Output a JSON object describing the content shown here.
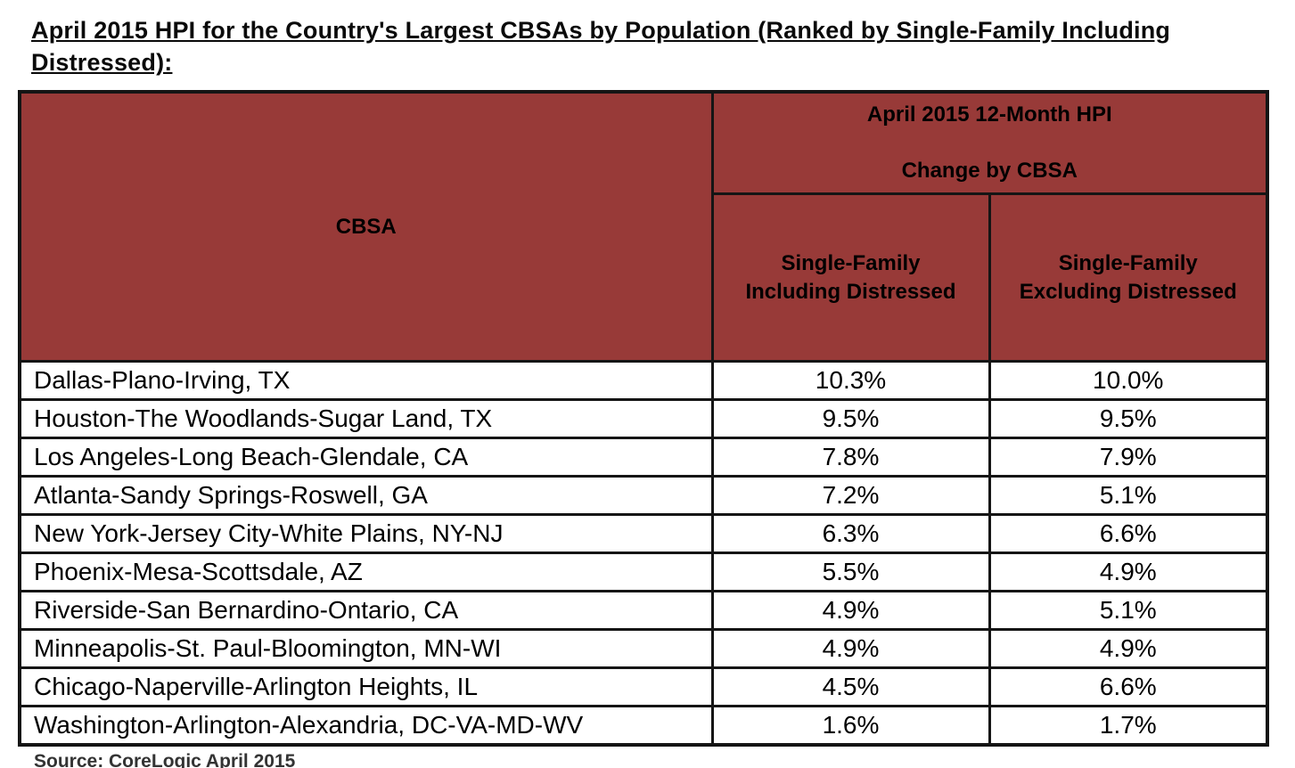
{
  "page_title": "April 2015 HPI for the Country's Largest CBSAs by Population (Ranked by Single-Family Including Distressed):",
  "source_note": "Source: CoreLogic April 2015",
  "colors": {
    "header_bg": "#983a38",
    "table_border": "#151515",
    "text": "#000000",
    "source_text": "#333333",
    "background": "#ffffff"
  },
  "chart_data": {
    "type": "table",
    "title": "April 2015 HPI for the Country's Largest CBSAs by Population (Ranked by Single-Family Including Distressed):",
    "corner_header": "CBSA",
    "group_header": "April 2015 12-Month HPI\n\nChange by CBSA",
    "columns": [
      "Single-Family\nIncluding Distressed",
      "Single-Family\nExcluding Distressed"
    ],
    "rows": [
      [
        "Dallas-Plano-Irving, TX",
        "10.3%",
        "10.0%"
      ],
      [
        "Houston-The Woodlands-Sugar Land, TX",
        "9.5%",
        "9.5%"
      ],
      [
        "Los Angeles-Long Beach-Glendale, CA",
        "7.8%",
        "7.9%"
      ],
      [
        "Atlanta-Sandy Springs-Roswell, GA",
        "7.2%",
        "5.1%"
      ],
      [
        "New York-Jersey City-White Plains, NY-NJ",
        "6.3%",
        "6.6%"
      ],
      [
        "Phoenix-Mesa-Scottsdale, AZ",
        "5.5%",
        "4.9%"
      ],
      [
        "Riverside-San Bernardino-Ontario, CA",
        "4.9%",
        "5.1%"
      ],
      [
        "Minneapolis-St. Paul-Bloomington, MN-WI",
        "4.9%",
        "4.9%"
      ],
      [
        "Chicago-Naperville-Arlington Heights, IL",
        "4.5%",
        "6.6%"
      ],
      [
        "Washington-Arlington-Alexandria, DC-VA-MD-WV",
        "1.6%",
        "1.7%"
      ]
    ],
    "values_including_distressed": [
      10.3,
      9.5,
      7.8,
      7.2,
      6.3,
      5.5,
      4.9,
      4.9,
      4.5,
      1.6
    ],
    "values_excluding_distressed": [
      10.0,
      9.5,
      7.9,
      5.1,
      6.6,
      4.9,
      5.1,
      4.9,
      6.6,
      1.7
    ],
    "source": "Source: CoreLogic April 2015"
  }
}
